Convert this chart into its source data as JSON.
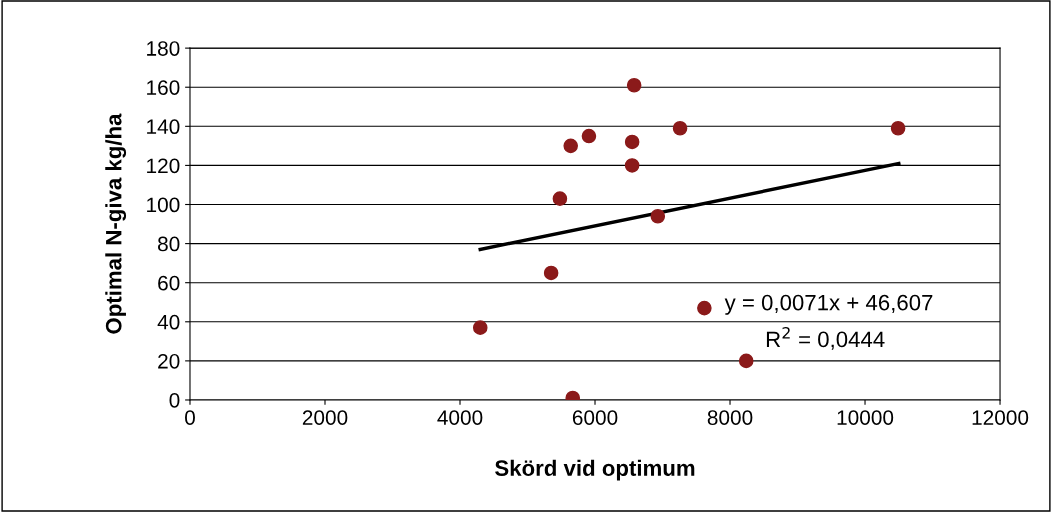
{
  "chart_data": {
    "type": "scatter",
    "xlabel": "Skörd vid optimum",
    "ylabel": "Optimal N-giva kg/ha",
    "xlim": [
      0,
      12000
    ],
    "xticks": [
      0,
      2000,
      4000,
      6000,
      8000,
      10000,
      12000
    ],
    "ylim": [
      0,
      180
    ],
    "yticks": [
      0,
      20,
      40,
      60,
      80,
      100,
      120,
      140,
      160,
      180
    ],
    "grid": "y",
    "legend": false,
    "series": [
      {
        "color": "#8b1a1a",
        "marker": "circle",
        "x": [
          4300,
          5350,
          5480,
          5640,
          5670,
          5910,
          6550,
          6550,
          6580,
          6930,
          7260,
          7620,
          8240,
          10490
        ],
        "values": [
          37,
          65,
          103,
          130,
          1,
          135,
          132,
          120,
          161,
          94,
          139,
          47,
          20,
          139
        ]
      },
      {
        "type": "line",
        "color": "#000000",
        "marker": "none",
        "line_style": "solid",
        "x": [
          4300,
          10500
        ],
        "values": [
          77,
          121
        ]
      }
    ],
    "annotations": [
      "y = 0,0071x + 46,607",
      "R$^{2}$ = 0,0444"
    ]
  }
}
